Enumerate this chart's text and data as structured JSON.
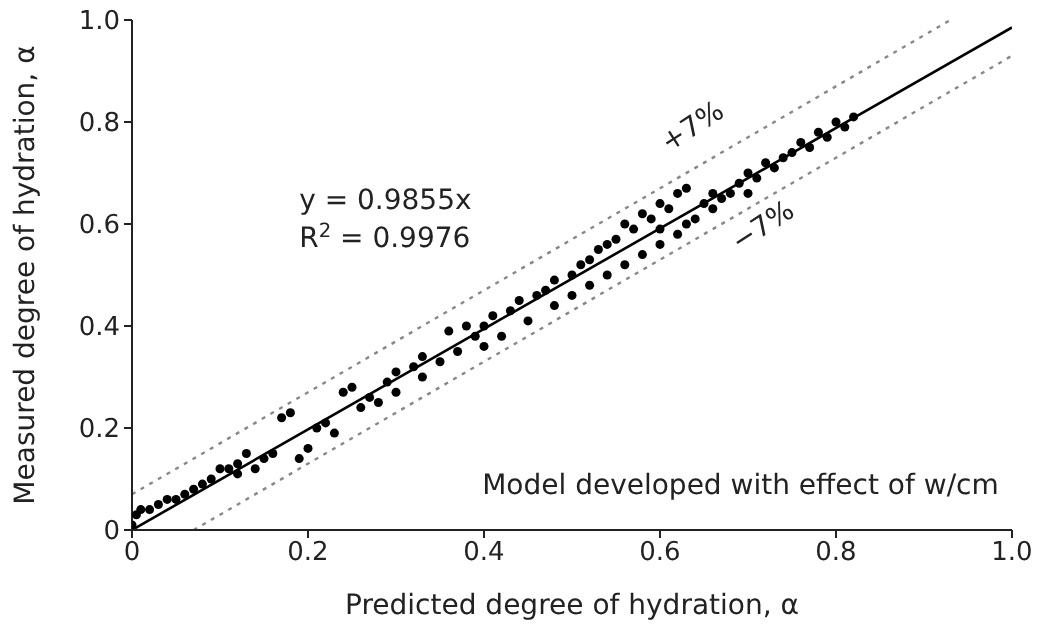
{
  "chart_data": {
    "type": "scatter",
    "xlabel": "Predicted degree of hydration, α",
    "ylabel": "Measured degree of hydration, α",
    "xlim": [
      0,
      1
    ],
    "ylim": [
      0,
      1
    ],
    "xticks": [
      0,
      0.2,
      0.4,
      0.6,
      0.8,
      {
        "value": 1,
        "label": "1.0"
      }
    ],
    "yticks": [
      0,
      0.2,
      0.4,
      0.6,
      0.8,
      {
        "value": 1,
        "label": "1.0"
      }
    ],
    "grid": false,
    "legend": false,
    "series": [
      {
        "color": "#000000",
        "marker": "circle",
        "x": [
          0,
          0.005,
          0.01,
          0.02,
          0.03,
          0.04,
          0.05,
          0.06,
          0.07,
          0.08,
          0.09,
          0.1,
          0.11,
          0.12,
          0.13,
          0.12,
          0.14,
          0.15,
          0.16,
          0.17,
          0.18,
          0.19,
          0.2,
          0.21,
          0.22,
          0.23,
          0.24,
          0.25,
          0.26,
          0.27,
          0.28,
          0.29,
          0.3,
          0.3,
          0.32,
          0.33,
          0.33,
          0.35,
          0.36,
          0.37,
          0.38,
          0.39,
          0.4,
          0.4,
          0.41,
          0.42,
          0.43,
          0.44,
          0.45,
          0.46,
          0.47,
          0.48,
          0.48,
          0.5,
          0.5,
          0.51,
          0.52,
          0.52,
          0.53,
          0.54,
          0.54,
          0.55,
          0.56,
          0.56,
          0.57,
          0.58,
          0.58,
          0.59,
          0.6,
          0.6,
          0.61,
          0.62,
          0.62,
          0.63,
          0.6,
          0.63,
          0.64,
          0.65,
          0.66,
          0.66,
          0.67,
          0.68,
          0.69,
          0.7,
          0.7,
          0.71,
          0.72,
          0.73,
          0.74,
          0.75,
          0.76,
          0.77,
          0.78,
          0.79,
          0.8,
          0.81,
          0.82
        ],
        "values": [
          0.01,
          0.03,
          0.04,
          0.04,
          0.05,
          0.06,
          0.06,
          0.07,
          0.08,
          0.09,
          0.1,
          0.12,
          0.12,
          0.13,
          0.15,
          0.11,
          0.12,
          0.14,
          0.15,
          0.22,
          0.23,
          0.14,
          0.16,
          0.2,
          0.21,
          0.19,
          0.27,
          0.28,
          0.24,
          0.26,
          0.25,
          0.29,
          0.31,
          0.27,
          0.32,
          0.34,
          0.3,
          0.33,
          0.39,
          0.35,
          0.4,
          0.38,
          0.36,
          0.4,
          0.42,
          0.38,
          0.43,
          0.45,
          0.41,
          0.46,
          0.47,
          0.44,
          0.49,
          0.5,
          0.46,
          0.52,
          0.53,
          0.48,
          0.55,
          0.56,
          0.5,
          0.57,
          0.6,
          0.52,
          0.59,
          0.62,
          0.54,
          0.61,
          0.64,
          0.56,
          0.63,
          0.66,
          0.58,
          0.67,
          0.59,
          0.6,
          0.61,
          0.64,
          0.63,
          0.66,
          0.65,
          0.66,
          0.68,
          0.7,
          0.66,
          0.69,
          0.72,
          0.71,
          0.73,
          0.74,
          0.76,
          0.75,
          0.78,
          0.77,
          0.8,
          0.79,
          0.81
        ]
      },
      {
        "type": "line",
        "marker": "none",
        "color": "#000000",
        "line_style": "solid",
        "x": [
          0,
          1
        ],
        "values": [
          0,
          0.9855
        ]
      },
      {
        "type": "line",
        "marker": "none",
        "color": "#888888",
        "line_style": "dotted",
        "x": [
          0,
          0.93
        ],
        "values": [
          0.07,
          1
        ]
      },
      {
        "type": "line",
        "marker": "none",
        "color": "#888888",
        "line_style": "dotted",
        "x": [
          0.07,
          1
        ],
        "values": [
          0,
          0.93
        ]
      }
    ],
    "annotations": [
      "y = 0.9855x",
      "R$^{2}$ = 0.9976",
      "+7%",
      "−7%",
      "Model developed with effect of w/cm"
    ]
  }
}
